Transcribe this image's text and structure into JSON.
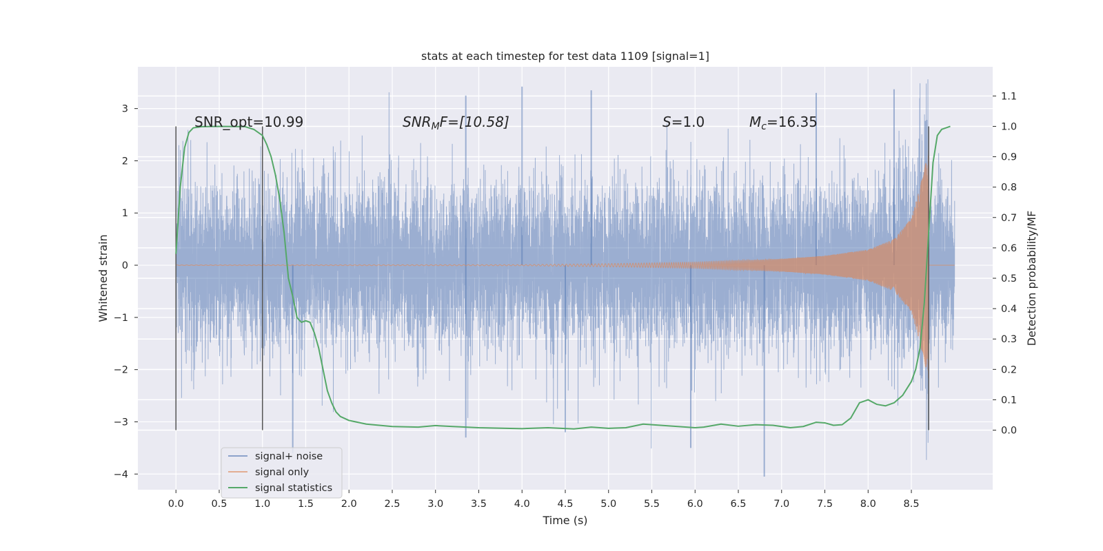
{
  "chart_data": {
    "type": "line",
    "title": "stats at each timestep for test data 1109 [signal=1]",
    "xlabel": "Time (s)",
    "ylabel": "Whitened strain",
    "y2label": "Detection probability/MF",
    "xlim": [
      -0.44,
      9.44
    ],
    "ylim": [
      -4.3,
      3.8
    ],
    "y2lim": [
      -0.196,
      1.196
    ],
    "xticks": [
      "0.0",
      "0.5",
      "1.0",
      "1.5",
      "2.0",
      "2.5",
      "3.0",
      "3.5",
      "4.0",
      "4.5",
      "5.0",
      "5.5",
      "6.0",
      "6.5",
      "7.0",
      "7.5",
      "8.0",
      "8.5"
    ],
    "yticks": [
      "3",
      "2",
      "1",
      "0",
      "−1",
      "−2",
      "−3",
      "−4"
    ],
    "y2ticks": [
      "0.0",
      "0.1",
      "0.2",
      "0.3",
      "0.4",
      "0.5",
      "0.6",
      "0.7",
      "0.8",
      "0.9",
      "1.0",
      "1.1"
    ],
    "grid": true,
    "legend_position": "lower-left",
    "annotations": {
      "snr_opt": "SNR_opt=10.99",
      "snr_mf_sym": "SNR",
      "snr_mf_sub": "M",
      "snr_mf_rest": "F=[10.58]",
      "s_sym": "S",
      "s_rest": "=1.0",
      "mc_sym": "M",
      "mc_sub": "c",
      "mc_rest": "=16.35"
    },
    "vlines": [
      0.0,
      1.0,
      8.7
    ],
    "series": [
      {
        "name": "signal+ noise",
        "color": "#4c72b0",
        "axis": "left",
        "duration": 9.0,
        "noise_sigma": 0.8,
        "envelope_approx": [
          [
            0.0,
            -2.5,
            2.6
          ],
          [
            1.0,
            -2.6,
            2.6
          ],
          [
            2.0,
            -2.7,
            2.8
          ],
          [
            3.0,
            -2.9,
            3.2
          ],
          [
            4.0,
            -2.9,
            3.4
          ],
          [
            5.0,
            -3.0,
            3.0
          ],
          [
            6.0,
            -3.5,
            3.1
          ],
          [
            7.0,
            -3.0,
            3.2
          ],
          [
            8.0,
            -2.6,
            3.2
          ],
          [
            9.0,
            -2.2,
            2.0
          ]
        ],
        "peak_spikes": [
          [
            3.35,
            3.25
          ],
          [
            4.0,
            3.42
          ],
          [
            4.5,
            -3.2
          ],
          [
            4.8,
            3.35
          ],
          [
            5.95,
            -3.5
          ],
          [
            6.8,
            -4.05
          ],
          [
            7.4,
            3.3
          ],
          [
            8.3,
            3.37
          ],
          [
            1.35,
            -3.6
          ],
          [
            3.35,
            -3.3
          ]
        ]
      },
      {
        "name": "signal only",
        "color": "#dd8452",
        "axis": "left",
        "chirp_end": 8.7,
        "chirp_f0": 18,
        "chirp_f1": 260,
        "amplitude_points": [
          [
            0.0,
            0.005
          ],
          [
            4.0,
            0.01
          ],
          [
            5.0,
            0.03
          ],
          [
            6.0,
            0.06
          ],
          [
            7.0,
            0.12
          ],
          [
            7.5,
            0.18
          ],
          [
            8.0,
            0.3
          ],
          [
            8.3,
            0.5
          ],
          [
            8.5,
            0.9
          ],
          [
            8.6,
            1.5
          ],
          [
            8.7,
            2.2
          ]
        ]
      },
      {
        "name": "signal statistics",
        "color": "#55a868",
        "axis": "right",
        "points": [
          [
            0.0,
            0.58
          ],
          [
            0.05,
            0.8
          ],
          [
            0.1,
            0.93
          ],
          [
            0.15,
            0.98
          ],
          [
            0.2,
            0.995
          ],
          [
            0.3,
            0.999
          ],
          [
            0.5,
            1.0
          ],
          [
            0.8,
            0.999
          ],
          [
            0.9,
            0.99
          ],
          [
            1.0,
            0.97
          ],
          [
            1.05,
            0.94
          ],
          [
            1.1,
            0.9
          ],
          [
            1.15,
            0.84
          ],
          [
            1.2,
            0.76
          ],
          [
            1.25,
            0.65
          ],
          [
            1.3,
            0.5
          ],
          [
            1.35,
            0.44
          ],
          [
            1.4,
            0.37
          ],
          [
            1.45,
            0.355
          ],
          [
            1.5,
            0.36
          ],
          [
            1.55,
            0.355
          ],
          [
            1.6,
            0.32
          ],
          [
            1.65,
            0.27
          ],
          [
            1.7,
            0.2
          ],
          [
            1.75,
            0.13
          ],
          [
            1.8,
            0.09
          ],
          [
            1.85,
            0.06
          ],
          [
            1.9,
            0.045
          ],
          [
            2.0,
            0.032
          ],
          [
            2.2,
            0.02
          ],
          [
            2.5,
            0.012
          ],
          [
            2.8,
            0.01
          ],
          [
            3.0,
            0.015
          ],
          [
            3.2,
            0.012
          ],
          [
            3.5,
            0.008
          ],
          [
            4.0,
            0.005
          ],
          [
            4.3,
            0.008
          ],
          [
            4.6,
            0.004
          ],
          [
            4.8,
            0.01
          ],
          [
            5.0,
            0.006
          ],
          [
            5.2,
            0.008
          ],
          [
            5.4,
            0.02
          ],
          [
            5.6,
            0.016
          ],
          [
            6.0,
            0.008
          ],
          [
            6.1,
            0.01
          ],
          [
            6.3,
            0.02
          ],
          [
            6.5,
            0.013
          ],
          [
            6.7,
            0.018
          ],
          [
            6.9,
            0.016
          ],
          [
            7.1,
            0.008
          ],
          [
            7.25,
            0.012
          ],
          [
            7.4,
            0.026
          ],
          [
            7.5,
            0.024
          ],
          [
            7.6,
            0.016
          ],
          [
            7.7,
            0.018
          ],
          [
            7.8,
            0.04
          ],
          [
            7.9,
            0.09
          ],
          [
            8.0,
            0.1
          ],
          [
            8.1,
            0.085
          ],
          [
            8.2,
            0.08
          ],
          [
            8.3,
            0.09
          ],
          [
            8.4,
            0.115
          ],
          [
            8.5,
            0.16
          ],
          [
            8.55,
            0.2
          ],
          [
            8.6,
            0.27
          ],
          [
            8.65,
            0.42
          ],
          [
            8.7,
            0.65
          ],
          [
            8.75,
            0.88
          ],
          [
            8.8,
            0.97
          ],
          [
            8.85,
            0.99
          ],
          [
            8.95,
            1.0
          ]
        ]
      }
    ]
  }
}
